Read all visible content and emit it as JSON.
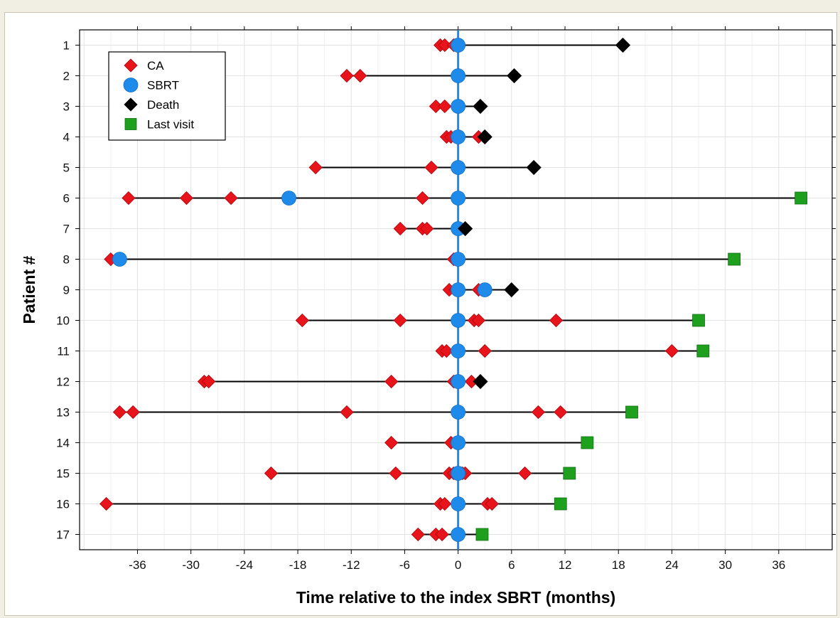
{
  "chart_data": {
    "type": "scatter",
    "title": "",
    "xlabel": "Time relative to the index SBRT (months)",
    "ylabel": "Patient #",
    "xlim": [
      -42.5,
      42
    ],
    "ylim": [
      0.5,
      17.5
    ],
    "xticks": [
      -36,
      -30,
      -24,
      -18,
      -12,
      -6,
      0,
      6,
      12,
      18,
      24,
      30,
      36
    ],
    "yticks": [
      1,
      2,
      3,
      4,
      5,
      6,
      7,
      8,
      9,
      10,
      11,
      12,
      13,
      14,
      15,
      16,
      17
    ],
    "ytick_labels": [
      "1",
      "2",
      "3",
      "4",
      "5",
      "6",
      "7",
      "8",
      "9",
      "10",
      "11",
      "12",
      "13",
      "14",
      "15",
      "16",
      "17"
    ],
    "y_axis_inverted": true,
    "grid": true,
    "legend_position": "top-left",
    "reference_line": {
      "x": 0,
      "color": "#1e8bea"
    },
    "colors": {
      "CA": "#e8141c",
      "SBRT": "#1e8bea",
      "Death": "#000000",
      "Last visit": "#1ea01e",
      "timeline": "#000000"
    },
    "legend": [
      {
        "label": "CA",
        "marker": "diamond",
        "color": "#e8141c"
      },
      {
        "label": "SBRT",
        "marker": "circle",
        "color": "#1e8bea"
      },
      {
        "label": "Death",
        "marker": "diamond",
        "color": "#000000"
      },
      {
        "label": "Last visit",
        "marker": "square",
        "color": "#1ea01e"
      }
    ],
    "patients": [
      {
        "id": 1,
        "CA": [
          -2,
          -1.5,
          -0.5
        ],
        "SBRT": [
          0
        ],
        "death": 18.5
      },
      {
        "id": 2,
        "CA": [
          -12.5,
          -11
        ],
        "SBRT": [
          0
        ],
        "death": 6.3
      },
      {
        "id": 3,
        "CA": [
          -2.5,
          -1.5,
          0
        ],
        "SBRT": [
          0
        ],
        "death": 2.5
      },
      {
        "id": 4,
        "CA": [
          -1.3,
          -0.8,
          2.3
        ],
        "SBRT": [
          0
        ],
        "death": 3.0
      },
      {
        "id": 5,
        "CA": [
          -16,
          -3
        ],
        "SBRT": [
          0
        ],
        "death": 8.5
      },
      {
        "id": 6,
        "CA": [
          -37,
          -30.5,
          -25.5,
          -4
        ],
        "SBRT": [
          -19,
          0
        ],
        "last_visit": 38.5
      },
      {
        "id": 7,
        "CA": [
          -6.5,
          -4,
          -3.5
        ],
        "SBRT": [
          0
        ],
        "death": 0.8
      },
      {
        "id": 8,
        "CA": [
          -39,
          -0.5
        ],
        "SBRT": [
          -38,
          0
        ],
        "last_visit": 31
      },
      {
        "id": 9,
        "CA": [
          -1,
          -0.3,
          2.3
        ],
        "SBRT": [
          0,
          3
        ],
        "death": 6
      },
      {
        "id": 10,
        "CA": [
          -17.5,
          -6.5,
          1.8,
          2.3,
          11
        ],
        "SBRT": [
          0
        ],
        "last_visit": 27
      },
      {
        "id": 11,
        "CA": [
          -1.8,
          -1.3,
          3,
          24
        ],
        "SBRT": [
          0
        ],
        "last_visit": 27.5
      },
      {
        "id": 12,
        "CA": [
          -28.5,
          -28,
          -7.5,
          -0.5,
          1.5
        ],
        "SBRT": [
          0
        ],
        "death": 2.5
      },
      {
        "id": 13,
        "CA": [
          -38,
          -36.5,
          -12.5,
          9,
          11.5
        ],
        "SBRT": [
          0
        ],
        "last_visit": 19.5
      },
      {
        "id": 14,
        "CA": [
          -7.5,
          -0.8
        ],
        "SBRT": [
          0
        ],
        "last_visit": 14.5
      },
      {
        "id": 15,
        "CA": [
          -21,
          -7,
          -1,
          -0.5,
          0.5,
          0.8,
          7.5
        ],
        "SBRT": [
          0
        ],
        "last_visit": 12.5
      },
      {
        "id": 16,
        "CA": [
          -39.5,
          -2,
          -1.5,
          3.3,
          3.8
        ],
        "SBRT": [
          0
        ],
        "last_visit": 11.5
      },
      {
        "id": 17,
        "CA": [
          -4.5,
          -2.5,
          -1.8
        ],
        "SBRT": [
          0
        ],
        "last_visit": 2.7
      }
    ]
  }
}
